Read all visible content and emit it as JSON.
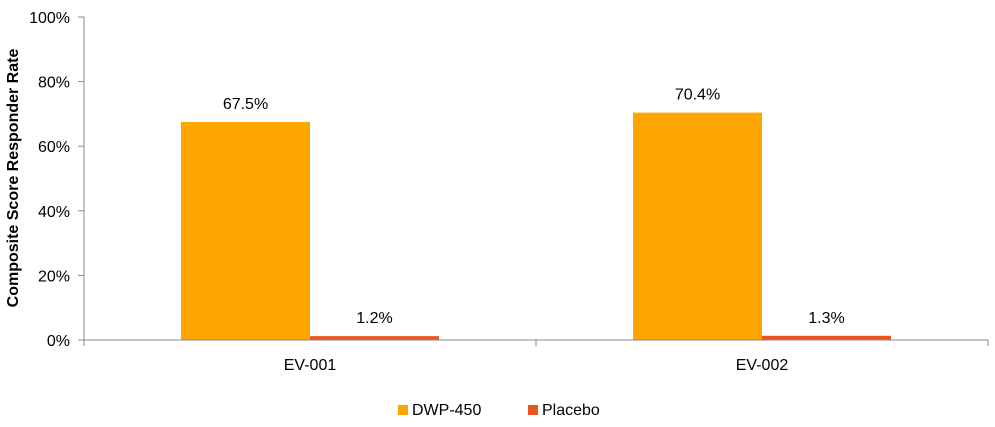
{
  "chart_data": {
    "type": "bar",
    "title": "",
    "xlabel": "",
    "ylabel": "Composite Score Responder Rate",
    "categories": [
      "EV-001",
      "EV-002"
    ],
    "series": [
      {
        "name": "DWP-450",
        "values": [
          67.5,
          70.4
        ],
        "color": "#FFA500",
        "labels": [
          "67.5%",
          "70.4%"
        ]
      },
      {
        "name": "Placebo",
        "values": [
          1.2,
          1.3
        ],
        "color": "#E8561E",
        "labels": [
          "1.2%",
          "1.3%"
        ]
      }
    ],
    "ylim": [
      0,
      100
    ],
    "yticks": [
      0,
      20,
      40,
      60,
      80,
      100
    ],
    "ytick_labels": [
      "0%",
      "20%",
      "40%",
      "60%",
      "80%",
      "100%"
    ],
    "grid": false,
    "legend": "bottom"
  }
}
